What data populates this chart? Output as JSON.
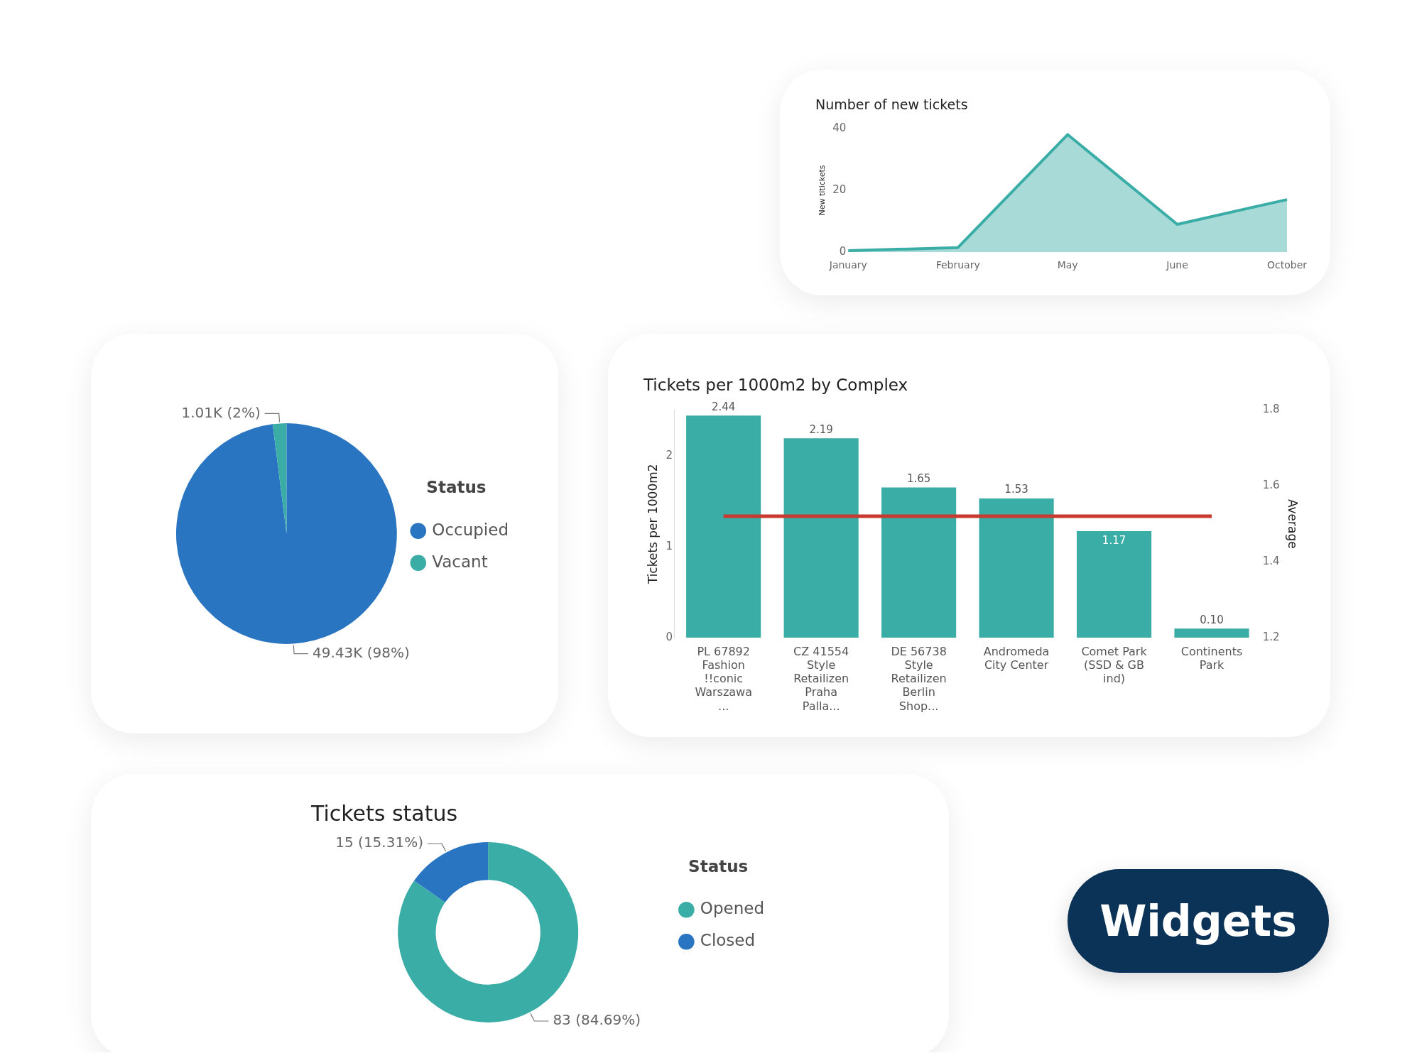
{
  "chart_data": [
    {
      "type": "area",
      "title": "Number of new tickets",
      "ylabel": "New titickets",
      "categories": [
        "January",
        "February",
        "May",
        "June",
        "October"
      ],
      "series": [
        {
          "color": "#3aada7",
          "values": [
            0.5,
            1.5,
            38,
            9,
            17
          ]
        }
      ],
      "ylim": [
        0,
        40
      ],
      "yticks": [
        0,
        20,
        40
      ]
    },
    {
      "type": "pie",
      "categories": [
        "Occupied",
        "Vacant"
      ],
      "values": [
        49430,
        1010
      ],
      "colors": [
        "#2a75c1",
        "#3aada7"
      ],
      "value_labels": [
        "49.43K (98%)",
        "1.01K (2%)"
      ],
      "legend_title": "Status",
      "legend": "right"
    },
    {
      "type": "bar",
      "title": "Tickets per 1000m2 by Complex",
      "ylabel": "Tickets per 1000m2",
      "y2label": "Average",
      "categories": [
        "PL 67892 Fashion !!conic Warszawa ...",
        "CZ 41554 Style Retailizen Praha Palla...",
        "DE 56738 Style Retailizen Berlin Shop...",
        "Andromeda City Center",
        "Comet Park (SSD & GB ind)",
        "Continents Park"
      ],
      "series": [
        {
          "type": "bar",
          "color": "#3aada7",
          "values": [
            2.44,
            2.19,
            1.65,
            1.53,
            1.17,
            0.1
          ],
          "value_labels": [
            "2.44",
            "2.19",
            "1.65",
            "1.53",
            "1.17",
            "0.10"
          ]
        },
        {
          "type": "line",
          "axis": "y2",
          "color": "#c8392e",
          "values": [
            1.52,
            1.52,
            1.52,
            1.52,
            1.52,
            1.52
          ]
        }
      ],
      "ylim": [
        0,
        2.5
      ],
      "yticks": [
        0,
        1,
        2
      ],
      "y2lim": [
        1.2,
        1.8
      ],
      "y2ticks": [
        1.2,
        1.4,
        1.6,
        1.8
      ]
    },
    {
      "type": "donut",
      "title": "Tickets status",
      "categories": [
        "Opened",
        "Closed"
      ],
      "values": [
        83,
        15
      ],
      "colors": [
        "#3aada7",
        "#2a75c1"
      ],
      "value_labels": [
        "83 (84.69%)",
        "15 (15.31%)"
      ],
      "legend_title": "Status",
      "legend": "right"
    },
    {
      "type": "other",
      "title": "Widgets"
    }
  ]
}
